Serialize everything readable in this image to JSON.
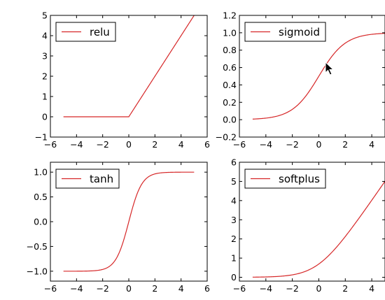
{
  "chart_data": [
    {
      "type": "line",
      "legend_position": "top-left",
      "grid": false,
      "xlim": [
        -6,
        6
      ],
      "ylim": [
        -1,
        5
      ],
      "xticks": [
        -6,
        -4,
        -2,
        0,
        2,
        4,
        6
      ],
      "yticks": [
        -1,
        0,
        1,
        2,
        3,
        4,
        5
      ],
      "x": [
        -5,
        0,
        5
      ],
      "series": [
        {
          "name": "relu",
          "color": "#d62728",
          "function": "relu",
          "values": [
            0,
            0,
            5
          ]
        }
      ]
    },
    {
      "type": "line",
      "legend_position": "top-left",
      "grid": false,
      "xlim": [
        -6,
        5
      ],
      "ylim": [
        -0.2,
        1.2
      ],
      "xticks": [
        -6,
        -4,
        -2,
        0,
        2,
        4
      ],
      "yticks": [
        -0.2,
        0.0,
        0.2,
        0.4,
        0.6,
        0.8,
        1.0,
        1.2
      ],
      "x": [
        -5,
        0,
        5
      ],
      "series": [
        {
          "name": "sigmoid",
          "color": "#d62728",
          "function": "sigmoid",
          "values": [
            0.007,
            0.5,
            0.993
          ]
        }
      ]
    },
    {
      "type": "line",
      "legend_position": "top-left",
      "grid": false,
      "xlim": [
        -6,
        6
      ],
      "ylim": [
        -1.2,
        1.2
      ],
      "xticks": [
        -6,
        -4,
        -2,
        0,
        2,
        4,
        6
      ],
      "yticks": [
        -1.0,
        -0.5,
        0.0,
        0.5,
        1.0
      ],
      "x": [
        -5,
        0,
        5
      ],
      "series": [
        {
          "name": "tanh",
          "color": "#d62728",
          "function": "tanh",
          "values": [
            -1.0,
            0.0,
            1.0
          ]
        }
      ]
    },
    {
      "type": "line",
      "legend_position": "top-left",
      "grid": false,
      "xlim": [
        -6,
        5
      ],
      "ylim": [
        -0.2,
        6
      ],
      "xticks": [
        -6,
        -4,
        -2,
        0,
        2,
        4
      ],
      "yticks": [
        0,
        1,
        2,
        3,
        4,
        5,
        6
      ],
      "x": [
        -5,
        0,
        5
      ],
      "series": [
        {
          "name": "softplus",
          "color": "#d62728",
          "function": "softplus",
          "values": [
            0.007,
            0.693,
            5.007
          ]
        }
      ]
    }
  ]
}
